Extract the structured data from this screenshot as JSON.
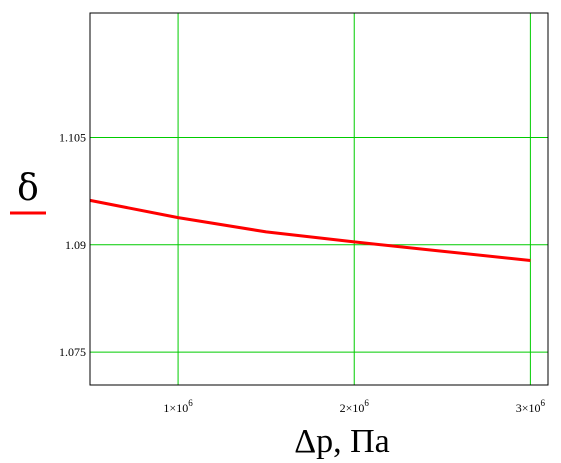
{
  "chart_data": {
    "type": "line",
    "xlabel": "Δp, Па",
    "ylabel": "δ",
    "xlim": [
      500000,
      3100000
    ],
    "ylim": [
      1.0704,
      1.1224
    ],
    "grid": true,
    "x_ticks": [
      1000000,
      2000000,
      3000000
    ],
    "x_tick_labels": [
      {
        "mantissa": "1×10",
        "exponent": "6"
      },
      {
        "mantissa": "2×10",
        "exponent": "6"
      },
      {
        "mantissa": "3×10",
        "exponent": "6"
      }
    ],
    "y_ticks": [
      1.075,
      1.09,
      1.105
    ],
    "y_tick_labels": [
      "1.075",
      "1.09",
      "1.105"
    ],
    "series": [
      {
        "color": "#ff0000",
        "x": [
          500000,
          1000000,
          1500000,
          2000000,
          2500000,
          3000000
        ],
        "y": [
          1.0962,
          1.0938,
          1.0918,
          1.0904,
          1.0891,
          1.0878
        ]
      }
    ],
    "colors": {
      "grid": "#00cc00",
      "line": "#ff0000",
      "ylabel_underline": "#ff0000"
    }
  }
}
